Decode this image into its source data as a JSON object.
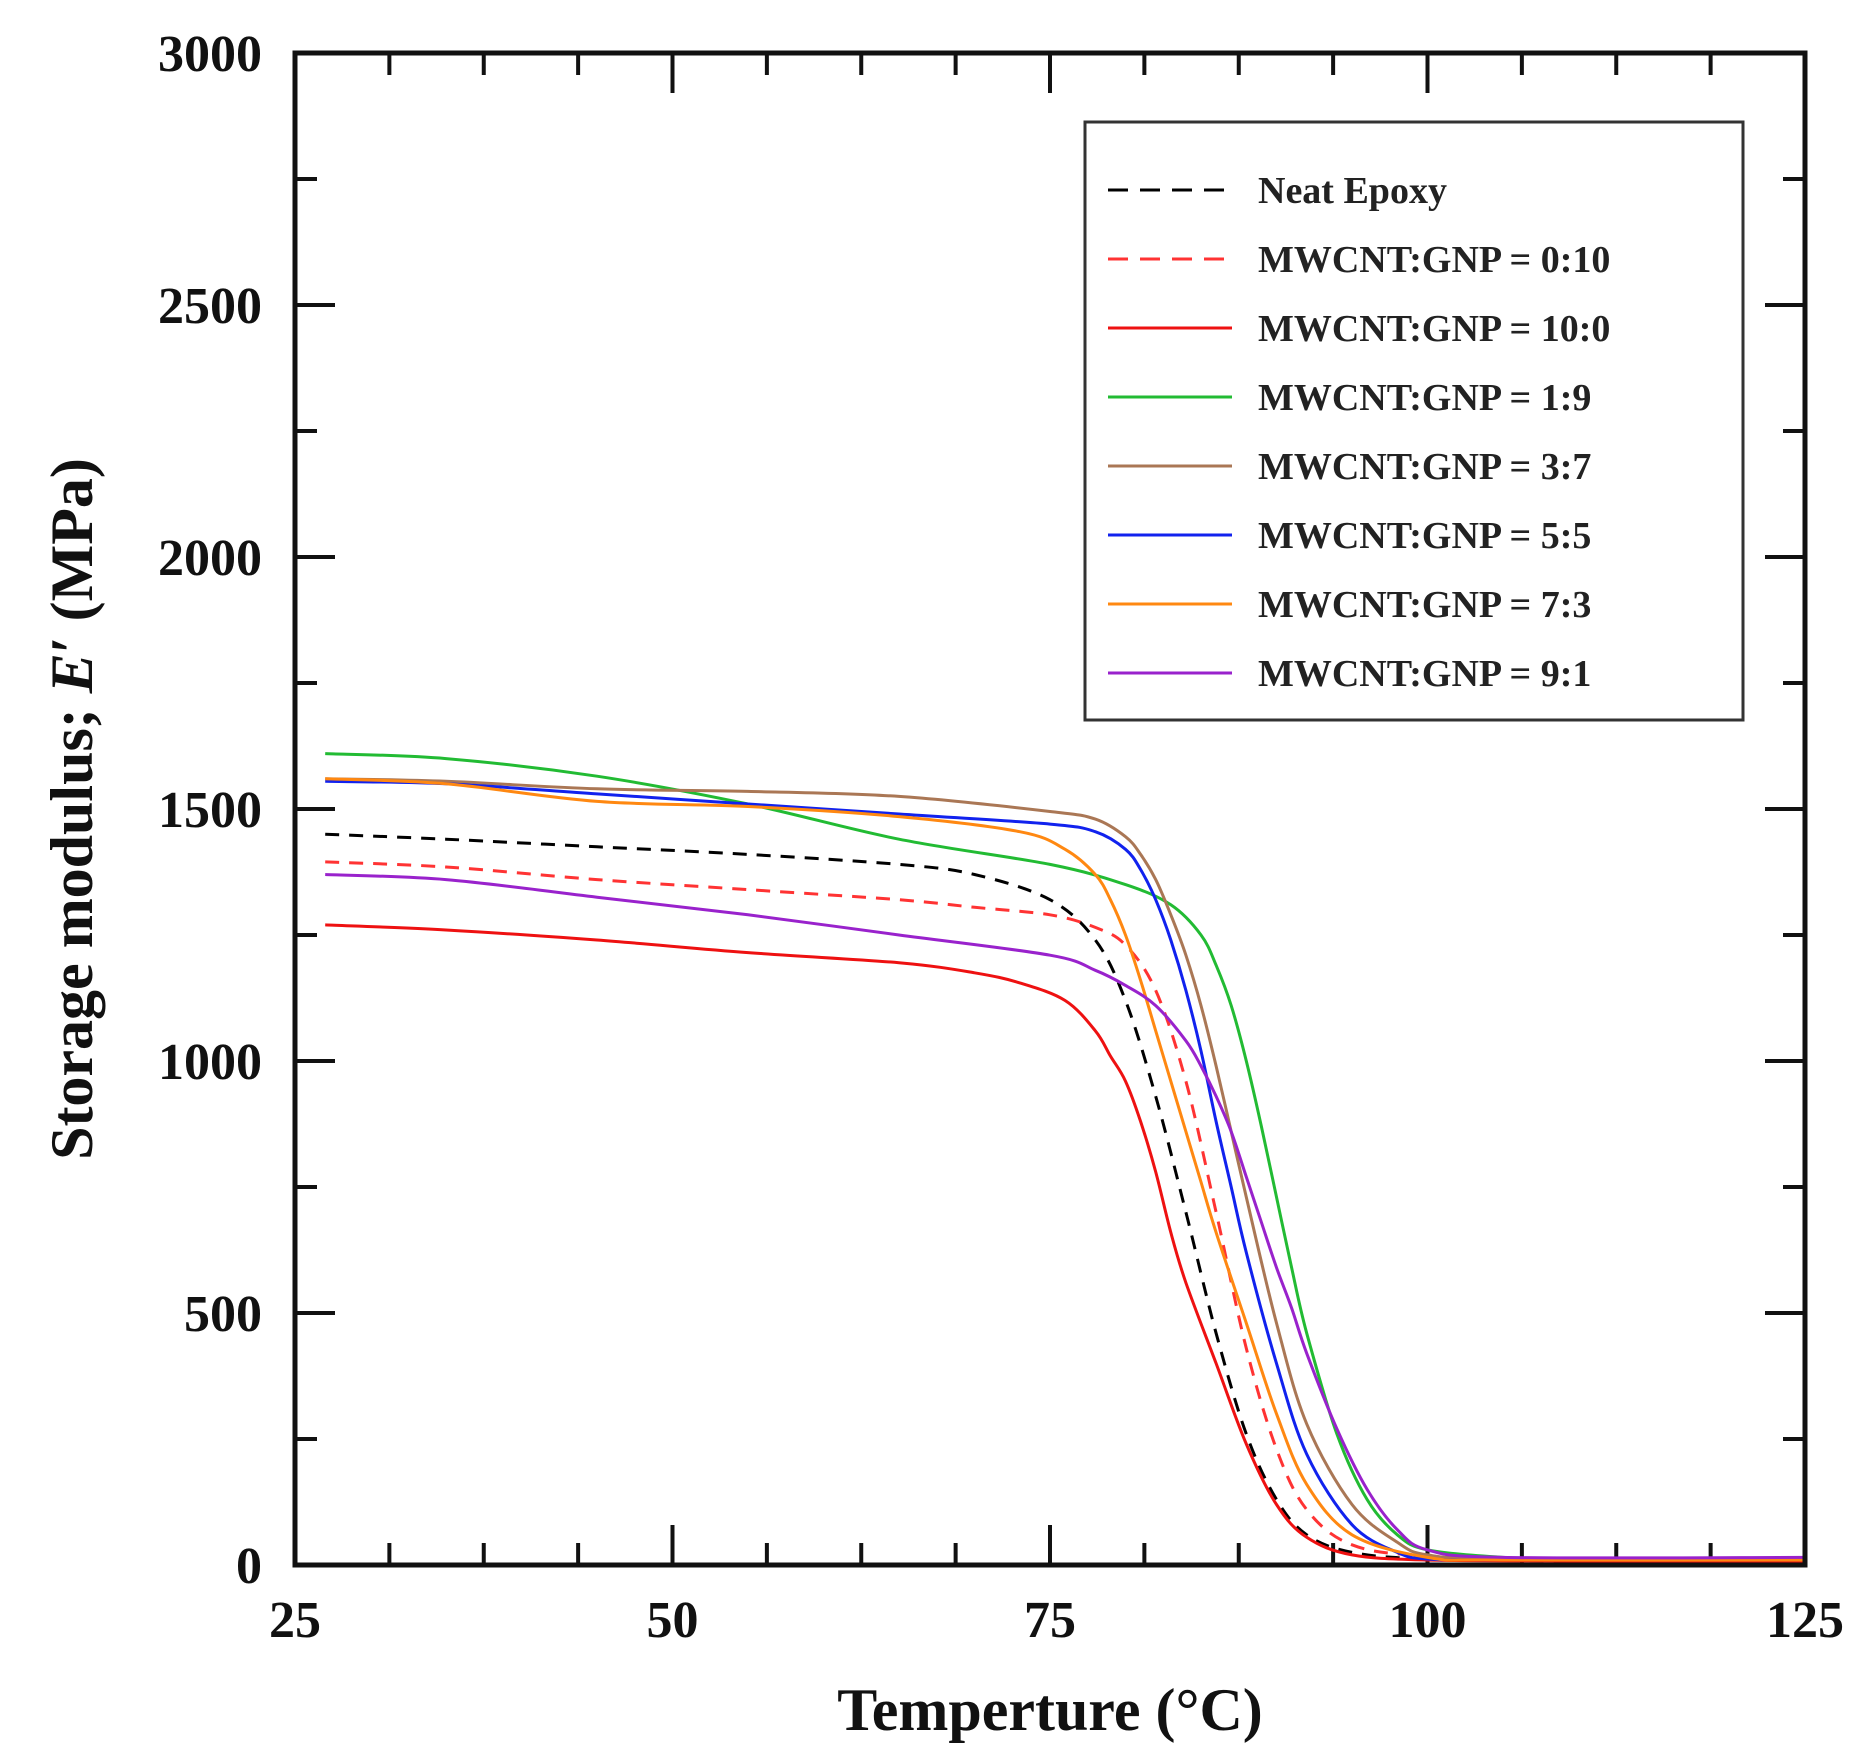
{
  "chart_data": {
    "type": "line",
    "title": "",
    "xlabel": "Temperture (°C)",
    "ylabel_prefix": "Storage modulus; ",
    "ylabel_symbol": "E",
    "ylabel_prime": "′",
    "ylabel_suffix": " (MPa)",
    "xlim": [
      25,
      125
    ],
    "ylim": [
      0,
      3000
    ],
    "x_ticks": [
      25,
      50,
      75,
      100,
      125
    ],
    "x_tick_labels": [
      "25",
      "50",
      "75",
      "100",
      "125"
    ],
    "y_ticks": [
      0,
      500,
      1000,
      1500,
      2000,
      2500,
      3000
    ],
    "y_tick_labels": [
      "0",
      "500",
      "1000",
      "1500",
      "2000",
      "2500",
      "3000"
    ],
    "legend_position": "top-right",
    "grid": false,
    "series": [
      {
        "name": "Neat Epoxy",
        "color": "#000000",
        "dash": true,
        "x": [
          27,
          35,
          45,
          55,
          65,
          70,
          75,
          78,
          80,
          82,
          84,
          86,
          88,
          90,
          92,
          95,
          100,
          110,
          125
        ],
        "y": [
          1450,
          1440,
          1425,
          1410,
          1390,
          1370,
          1320,
          1240,
          1120,
          930,
          700,
          460,
          260,
          130,
          60,
          25,
          12,
          8,
          8
        ]
      },
      {
        "name": "MWCNT:GNP = 0:10",
        "color": "#ff3333",
        "dash": true,
        "x": [
          27,
          35,
          45,
          55,
          65,
          70,
          75,
          78,
          80,
          82,
          84,
          86,
          88,
          90,
          92,
          95,
          100,
          110,
          125
        ],
        "y": [
          1395,
          1385,
          1360,
          1340,
          1320,
          1305,
          1290,
          1265,
          1230,
          1140,
          960,
          700,
          430,
          230,
          110,
          40,
          18,
          12,
          12
        ]
      },
      {
        "name": "MWCNT:GNP = 10:0",
        "color": "#ee1111",
        "dash": false,
        "x": [
          27,
          35,
          45,
          55,
          65,
          70,
          73,
          76,
          78,
          79,
          80,
          81,
          82,
          83,
          84,
          86,
          88,
          90,
          92,
          95,
          100,
          110,
          125
        ],
        "y": [
          1270,
          1260,
          1240,
          1215,
          1195,
          1175,
          1155,
          1120,
          1060,
          1010,
          960,
          880,
          780,
          660,
          560,
          400,
          240,
          120,
          55,
          20,
          10,
          8,
          8
        ]
      },
      {
        "name": "MWCNT:GNP = 1:9",
        "color": "#22bb33",
        "dash": false,
        "x": [
          27,
          35,
          45,
          55,
          65,
          75,
          80,
          83,
          85,
          86,
          87,
          88,
          89,
          90,
          91,
          92,
          94,
          96,
          98,
          100,
          105,
          110,
          125
        ],
        "y": [
          1610,
          1600,
          1565,
          1510,
          1440,
          1390,
          1350,
          1310,
          1250,
          1190,
          1110,
          1000,
          870,
          730,
          590,
          460,
          260,
          130,
          60,
          30,
          15,
          12,
          12
        ]
      },
      {
        "name": "MWCNT:GNP = 3:7",
        "color": "#aa7755",
        "dash": false,
        "x": [
          27,
          35,
          45,
          55,
          65,
          75,
          78,
          80,
          81,
          82,
          83,
          84,
          85,
          86,
          87,
          88,
          90,
          92,
          95,
          98,
          100,
          105,
          125
        ],
        "y": [
          1560,
          1555,
          1540,
          1535,
          1525,
          1495,
          1480,
          1445,
          1410,
          1360,
          1290,
          1210,
          1110,
          990,
          860,
          730,
          480,
          280,
          120,
          45,
          20,
          12,
          12
        ]
      },
      {
        "name": "MWCNT:GNP = 5:5",
        "color": "#1122ee",
        "dash": false,
        "x": [
          27,
          35,
          45,
          55,
          65,
          75,
          78,
          80,
          81,
          82,
          83,
          84,
          85,
          86,
          87,
          88,
          90,
          92,
          95,
          98,
          100,
          105,
          125
        ],
        "y": [
          1555,
          1550,
          1530,
          1510,
          1490,
          1470,
          1455,
          1420,
          1380,
          1320,
          1240,
          1140,
          1020,
          880,
          750,
          620,
          400,
          220,
          80,
          25,
          12,
          10,
          10
        ]
      },
      {
        "name": "MWCNT:GNP = 7:3",
        "color": "#ff8811",
        "dash": false,
        "x": [
          27,
          35,
          45,
          55,
          65,
          73,
          76,
          78,
          79,
          80,
          81,
          82,
          83,
          84,
          85,
          86,
          88,
          90,
          92,
          95,
          100,
          105,
          125
        ],
        "y": [
          1560,
          1550,
          1515,
          1505,
          1485,
          1455,
          1420,
          1370,
          1320,
          1250,
          1160,
          1060,
          960,
          860,
          760,
          660,
          480,
          300,
          160,
          60,
          15,
          10,
          10
        ]
      },
      {
        "name": "MWCNT:GNP = 9:1",
        "color": "#9922cc",
        "dash": false,
        "x": [
          27,
          35,
          45,
          55,
          65,
          75,
          78,
          80,
          82,
          84,
          85,
          86,
          87,
          88,
          89,
          90,
          91,
          92,
          94,
          96,
          98,
          100,
          105,
          125
        ],
        "y": [
          1370,
          1360,
          1325,
          1290,
          1250,
          1210,
          1180,
          1150,
          1110,
          1040,
          990,
          930,
          860,
          770,
          680,
          590,
          510,
          420,
          270,
          150,
          70,
          30,
          15,
          15
        ]
      }
    ]
  }
}
